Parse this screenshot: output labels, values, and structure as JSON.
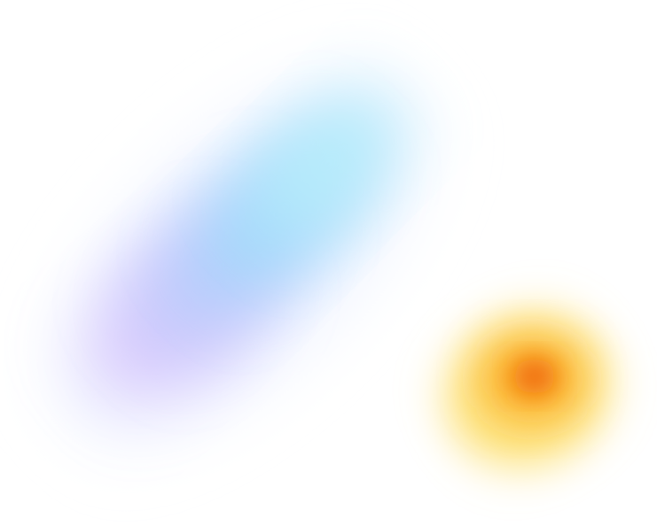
{
  "background": "#ffffff",
  "blobs": {
    "cool": {
      "colors": {
        "cyan": "#b6ecfb",
        "blue": "#a2d8fb",
        "periwinkle": "#bfcbfc",
        "violet": "#dccbfd"
      }
    },
    "warm": {
      "colors": {
        "core": "#f06a0e",
        "mid": "#fbaa22",
        "outer": "#fde27a"
      }
    }
  }
}
